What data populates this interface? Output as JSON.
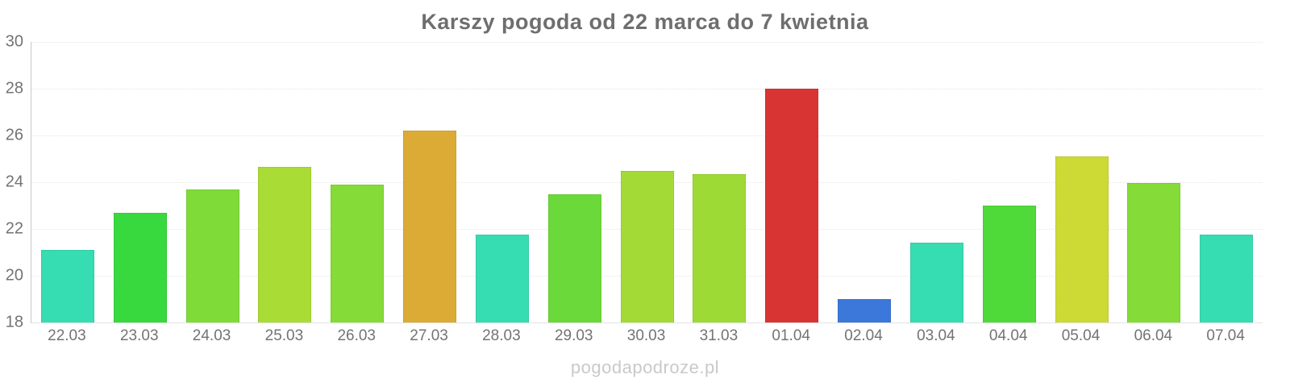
{
  "chart_data": {
    "type": "bar",
    "title": "Karszy pogoda od 22 marca do 7 kwietnia",
    "categories": [
      "22.03",
      "23.03",
      "24.03",
      "25.03",
      "26.03",
      "27.03",
      "28.03",
      "29.03",
      "30.03",
      "31.03",
      "01.04",
      "02.04",
      "03.04",
      "04.04",
      "05.04",
      "06.04",
      "07.04"
    ],
    "values": [
      21.1,
      22.7,
      23.7,
      24.65,
      23.9,
      26.2,
      21.75,
      23.5,
      24.5,
      24.35,
      28.0,
      19.0,
      21.4,
      23.0,
      25.1,
      23.95,
      21.75
    ],
    "bar_colors": [
      "#36dcb2",
      "#38d93e",
      "#7edb38",
      "#a9dc35",
      "#85db37",
      "#dcab36",
      "#36dcb2",
      "#6cd93a",
      "#a4da36",
      "#9eda36",
      "#d93434",
      "#3b78d9",
      "#36dcb2",
      "#50da3a",
      "#cdda36",
      "#85db37",
      "#36dcb2"
    ],
    "xlabel": "",
    "ylabel": "",
    "ylim": [
      18,
      30
    ],
    "ytick_step": 2,
    "ytick_labels": [
      "18",
      "20",
      "22",
      "24",
      "26",
      "28",
      "30"
    ],
    "grid": true,
    "gridline_style": "dotted",
    "legend_position": "none"
  },
  "footer": {
    "text": "pogodapodroze.pl"
  },
  "colors": {
    "background": "#ffffff",
    "title_text": "#6e6e6e",
    "axis_label_text": "#737373",
    "gridline": "#e6e6e6",
    "y_axis_line": "#c9c9c9",
    "watermark_text": "#c9c9c9"
  }
}
